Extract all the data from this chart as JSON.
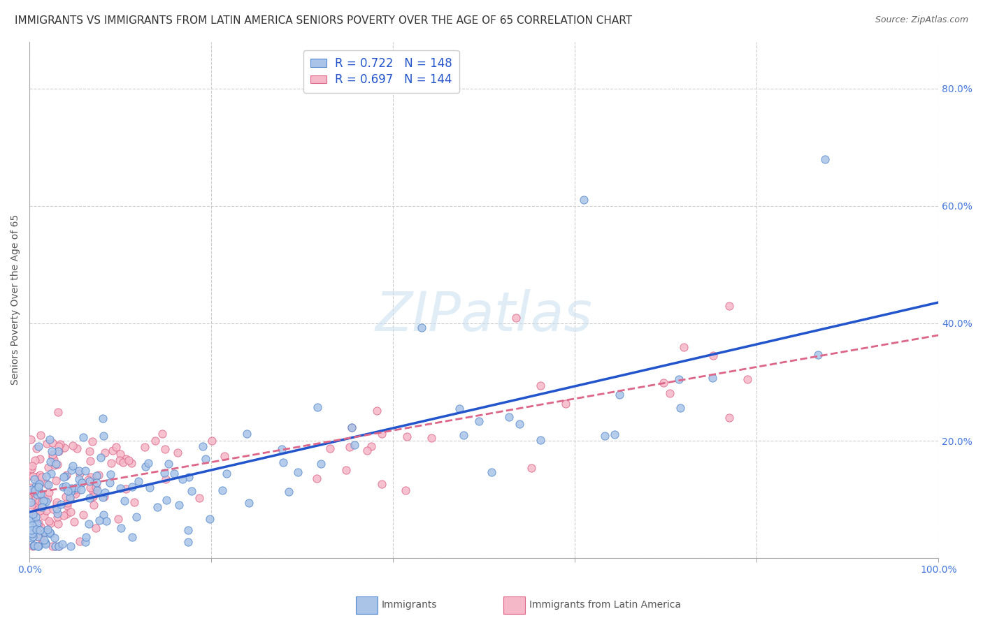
{
  "title": "IMMIGRANTS VS IMMIGRANTS FROM LATIN AMERICA SENIORS POVERTY OVER THE AGE OF 65 CORRELATION CHART",
  "source": "Source: ZipAtlas.com",
  "ylabel": "Seniors Poverty Over the Age of 65",
  "blue_label": "Immigrants",
  "pink_label": "Immigrants from Latin America",
  "blue_R": 0.722,
  "blue_N": 148,
  "pink_R": 0.697,
  "pink_N": 144,
  "blue_color": "#aac4e8",
  "pink_color": "#f5b8c8",
  "blue_edge_color": "#5588cc",
  "pink_edge_color": "#dd6688",
  "blue_line_color": "#2255CC",
  "pink_line_color": "#dd6688",
  "watermark": "ZIPatlas",
  "xlim": [
    0,
    1.0
  ],
  "ylim": [
    0,
    0.88
  ],
  "background_color": "#ffffff",
  "grid_color": "#cccccc",
  "title_fontsize": 11,
  "axis_label_fontsize": 10,
  "tick_fontsize": 10,
  "right_tick_color": "#4477DD",
  "legend_fontsize": 12
}
